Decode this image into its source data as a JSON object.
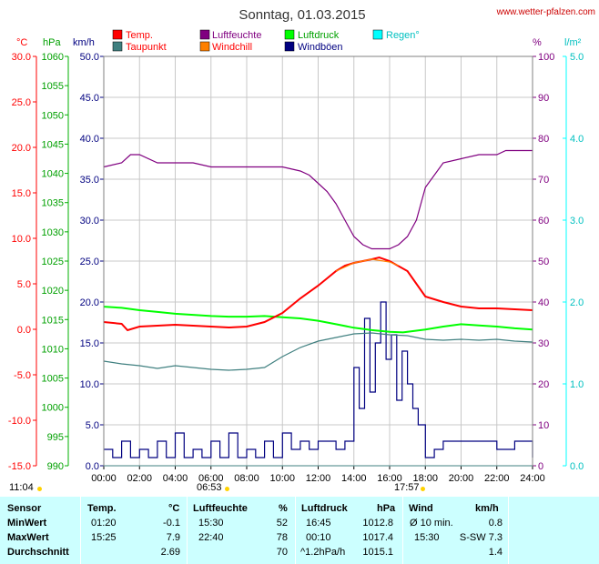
{
  "header": {
    "title": "Sonntag, 01.03.2015",
    "site": "www.wetter-pfalzen.com"
  },
  "axes": {
    "unit_c": "°C",
    "unit_hpa": "hPa",
    "unit_kmh": "km/h",
    "unit_pct": "%",
    "unit_lm2": "l/m²",
    "c_ticks": [
      "30.0",
      "25.0",
      "20.0",
      "15.0",
      "10.0",
      "5.0",
      "0.0",
      "-5.0",
      "-10.0",
      "-15.0"
    ],
    "hpa_ticks": [
      "1060",
      "1055",
      "1050",
      "1045",
      "1040",
      "1035",
      "1030",
      "1025",
      "1020",
      "1015",
      "1010",
      "1005",
      "1000",
      "995",
      "990"
    ],
    "kmh_ticks": [
      "50.0",
      "45.0",
      "40.0",
      "35.0",
      "30.0",
      "25.0",
      "20.0",
      "15.0",
      "10.0",
      "5.0",
      "0.0"
    ],
    "pct_ticks": [
      "100",
      "90",
      "80",
      "70",
      "60",
      "50",
      "40",
      "30",
      "20",
      "10",
      "0"
    ],
    "lm2_ticks": [
      "5.0",
      "4.0",
      "3.0",
      "2.0",
      "1.0",
      "0.0"
    ],
    "x_ticks": [
      "00:00",
      "02:00",
      "04:00",
      "06:00",
      "08:00",
      "10:00",
      "12:00",
      "14:00",
      "16:00",
      "18:00",
      "20:00",
      "22:00",
      "24:00"
    ]
  },
  "legend": [
    {
      "label": "Temp.",
      "color": "#ff0000"
    },
    {
      "label": "Luftfeuchte",
      "color": "#800080"
    },
    {
      "label": "Luftdruck",
      "color": "#00ff00"
    },
    {
      "label": "Regen°",
      "color": "#00ffff"
    },
    {
      "label": "Taupunkt",
      "color": "#408080"
    },
    {
      "label": "Windchill",
      "color": "#ff8000"
    },
    {
      "label": "Windböen",
      "color": "#000080"
    }
  ],
  "sun": {
    "moonrise": "11:04",
    "sunrise": "06:53",
    "sunset": "17:57"
  },
  "chart_data": {
    "type": "line",
    "title": "Sonntag, 01.03.2015",
    "xlabel": "",
    "xlim": [
      0,
      24
    ],
    "ylim_kmh": [
      0,
      50
    ],
    "ylim_c": [
      -15,
      30
    ],
    "ylim_hpa": [
      990,
      1060
    ],
    "ylim_pct": [
      0,
      100
    ],
    "ylim_lm2": [
      0,
      5
    ],
    "grid": true,
    "series": [
      {
        "name": "Temp.",
        "axis": "c",
        "color": "#ff0000",
        "x": [
          0,
          1,
          1.33,
          2,
          3,
          4,
          5,
          6,
          7,
          8,
          9,
          10,
          11,
          12,
          12.5,
          13,
          13.5,
          14,
          14.5,
          15,
          15.42,
          16,
          17,
          18,
          19,
          20,
          21,
          22,
          23,
          24
        ],
        "y": [
          0.8,
          0.6,
          -0.1,
          0.3,
          0.4,
          0.5,
          0.4,
          0.3,
          0.2,
          0.3,
          0.8,
          1.8,
          3.4,
          4.8,
          5.6,
          6.4,
          7.0,
          7.3,
          7.5,
          7.7,
          7.9,
          7.5,
          6.4,
          3.6,
          3.0,
          2.5,
          2.3,
          2.3,
          2.2,
          2.1
        ]
      },
      {
        "name": "Taupunkt",
        "axis": "c",
        "color": "#408080",
        "x": [
          0,
          1,
          2,
          3,
          4,
          5,
          6,
          7,
          8,
          9,
          10,
          11,
          12,
          13,
          14,
          15,
          16,
          17,
          18,
          19,
          20,
          21,
          22,
          23,
          24
        ],
        "y": [
          -3.5,
          -3.8,
          -4.0,
          -4.3,
          -4.0,
          -4.2,
          -4.4,
          -4.5,
          -4.4,
          -4.2,
          -3.0,
          -2.0,
          -1.3,
          -0.9,
          -0.5,
          -0.4,
          -0.6,
          -0.7,
          -1.1,
          -1.2,
          -1.1,
          -1.2,
          -1.1,
          -1.3,
          -1.4
        ]
      },
      {
        "name": "Luftdruck",
        "axis": "hpa",
        "color": "#00ff00",
        "x": [
          0,
          1,
          2,
          3,
          4,
          5,
          6,
          7,
          8,
          9,
          10,
          11,
          12,
          13,
          14,
          15,
          16,
          16.75,
          17,
          18,
          19,
          20,
          21,
          22,
          23,
          24
        ],
        "y": [
          1017.2,
          1017.0,
          1016.6,
          1016.3,
          1016.0,
          1015.8,
          1015.6,
          1015.5,
          1015.5,
          1015.6,
          1015.4,
          1015.2,
          1014.8,
          1014.2,
          1013.6,
          1013.2,
          1012.9,
          1012.8,
          1012.9,
          1013.3,
          1013.8,
          1014.2,
          1014.0,
          1013.8,
          1013.5,
          1013.3
        ]
      },
      {
        "name": "Luftfeuchte",
        "axis": "pct",
        "color": "#800080",
        "x": [
          0,
          1,
          1.5,
          2,
          3,
          4,
          5,
          6,
          7,
          8,
          9,
          10,
          11,
          11.5,
          12,
          12.5,
          13,
          13.5,
          14,
          14.5,
          15,
          15.5,
          16,
          16.5,
          17,
          17.5,
          18,
          19,
          20,
          21,
          22,
          22.5,
          23,
          24
        ],
        "y": [
          73,
          74,
          76,
          76,
          74,
          74,
          74,
          73,
          73,
          73,
          73,
          73,
          72,
          71,
          69,
          67,
          64,
          60,
          56,
          54,
          53,
          53,
          53,
          54,
          56,
          60,
          68,
          74,
          75,
          76,
          76,
          77,
          77,
          77
        ]
      },
      {
        "name": "Windböen",
        "axis": "kmh",
        "color": "#000080",
        "x": [
          0,
          0.5,
          1,
          1.5,
          2,
          2.5,
          3,
          3.5,
          4,
          4.5,
          5,
          5.5,
          6,
          6.5,
          7,
          7.5,
          8,
          8.5,
          9,
          9.5,
          10,
          10.5,
          11,
          11.5,
          12,
          12.5,
          13,
          13.5,
          14,
          14.3,
          14.6,
          14.9,
          15.2,
          15.5,
          15.8,
          16.1,
          16.4,
          16.7,
          17,
          17.3,
          17.6,
          18,
          18.5,
          19,
          20,
          21,
          22,
          23,
          24
        ],
        "y": [
          2,
          1,
          3,
          1,
          2,
          1,
          3,
          1,
          4,
          1,
          2,
          1,
          3,
          1,
          4,
          1,
          2,
          1,
          3,
          1,
          4,
          2,
          3,
          2,
          3,
          3,
          2,
          3,
          12,
          7,
          18,
          9,
          15,
          20,
          13,
          16,
          8,
          14,
          10,
          7,
          5,
          1,
          2,
          3,
          3,
          3,
          2,
          3,
          1
        ]
      },
      {
        "name": "Windchill",
        "axis": "c",
        "color": "#ff8000",
        "x": [
          13,
          14,
          15,
          16,
          16.5
        ],
        "y": [
          6.4,
          7.3,
          7.7,
          7.4,
          7.0
        ]
      },
      {
        "name": "Regen°",
        "axis": "lm2",
        "color": "#00ffff",
        "x": [
          0,
          24
        ],
        "y": [
          0,
          0
        ]
      }
    ]
  },
  "stats": {
    "headers": {
      "sensor": "Sensor",
      "temp": "Temp.",
      "temp_unit": "°C",
      "hum": "Luftfeuchte",
      "hum_unit": "%",
      "press": "Luftdruck",
      "press_unit": "hPa",
      "wind": "Wind",
      "wind_unit": "km/h"
    },
    "rows": [
      {
        "label": "MinWert",
        "t_time": "01:20",
        "t_val": "-0.1",
        "h_time": "15:30",
        "h_val": "52",
        "p_time": "16:45",
        "p_val": "1012.8",
        "w_time": "Ø 10 min.",
        "w_val": "0.8"
      },
      {
        "label": "MaxWert",
        "t_time": "15:25",
        "t_val": "7.9",
        "h_time": "22:40",
        "h_val": "78",
        "p_time": "00:10",
        "p_val": "1017.4",
        "w_time": "15:30",
        "w_val": "S-SW 7.3"
      },
      {
        "label": "Durchschnitt",
        "t_time": "",
        "t_val": "2.69",
        "h_time": "",
        "h_val": "70",
        "p_time": "^1.2hPa/h",
        "p_val": "1015.1",
        "w_time": "",
        "w_val": "1.4"
      }
    ]
  }
}
